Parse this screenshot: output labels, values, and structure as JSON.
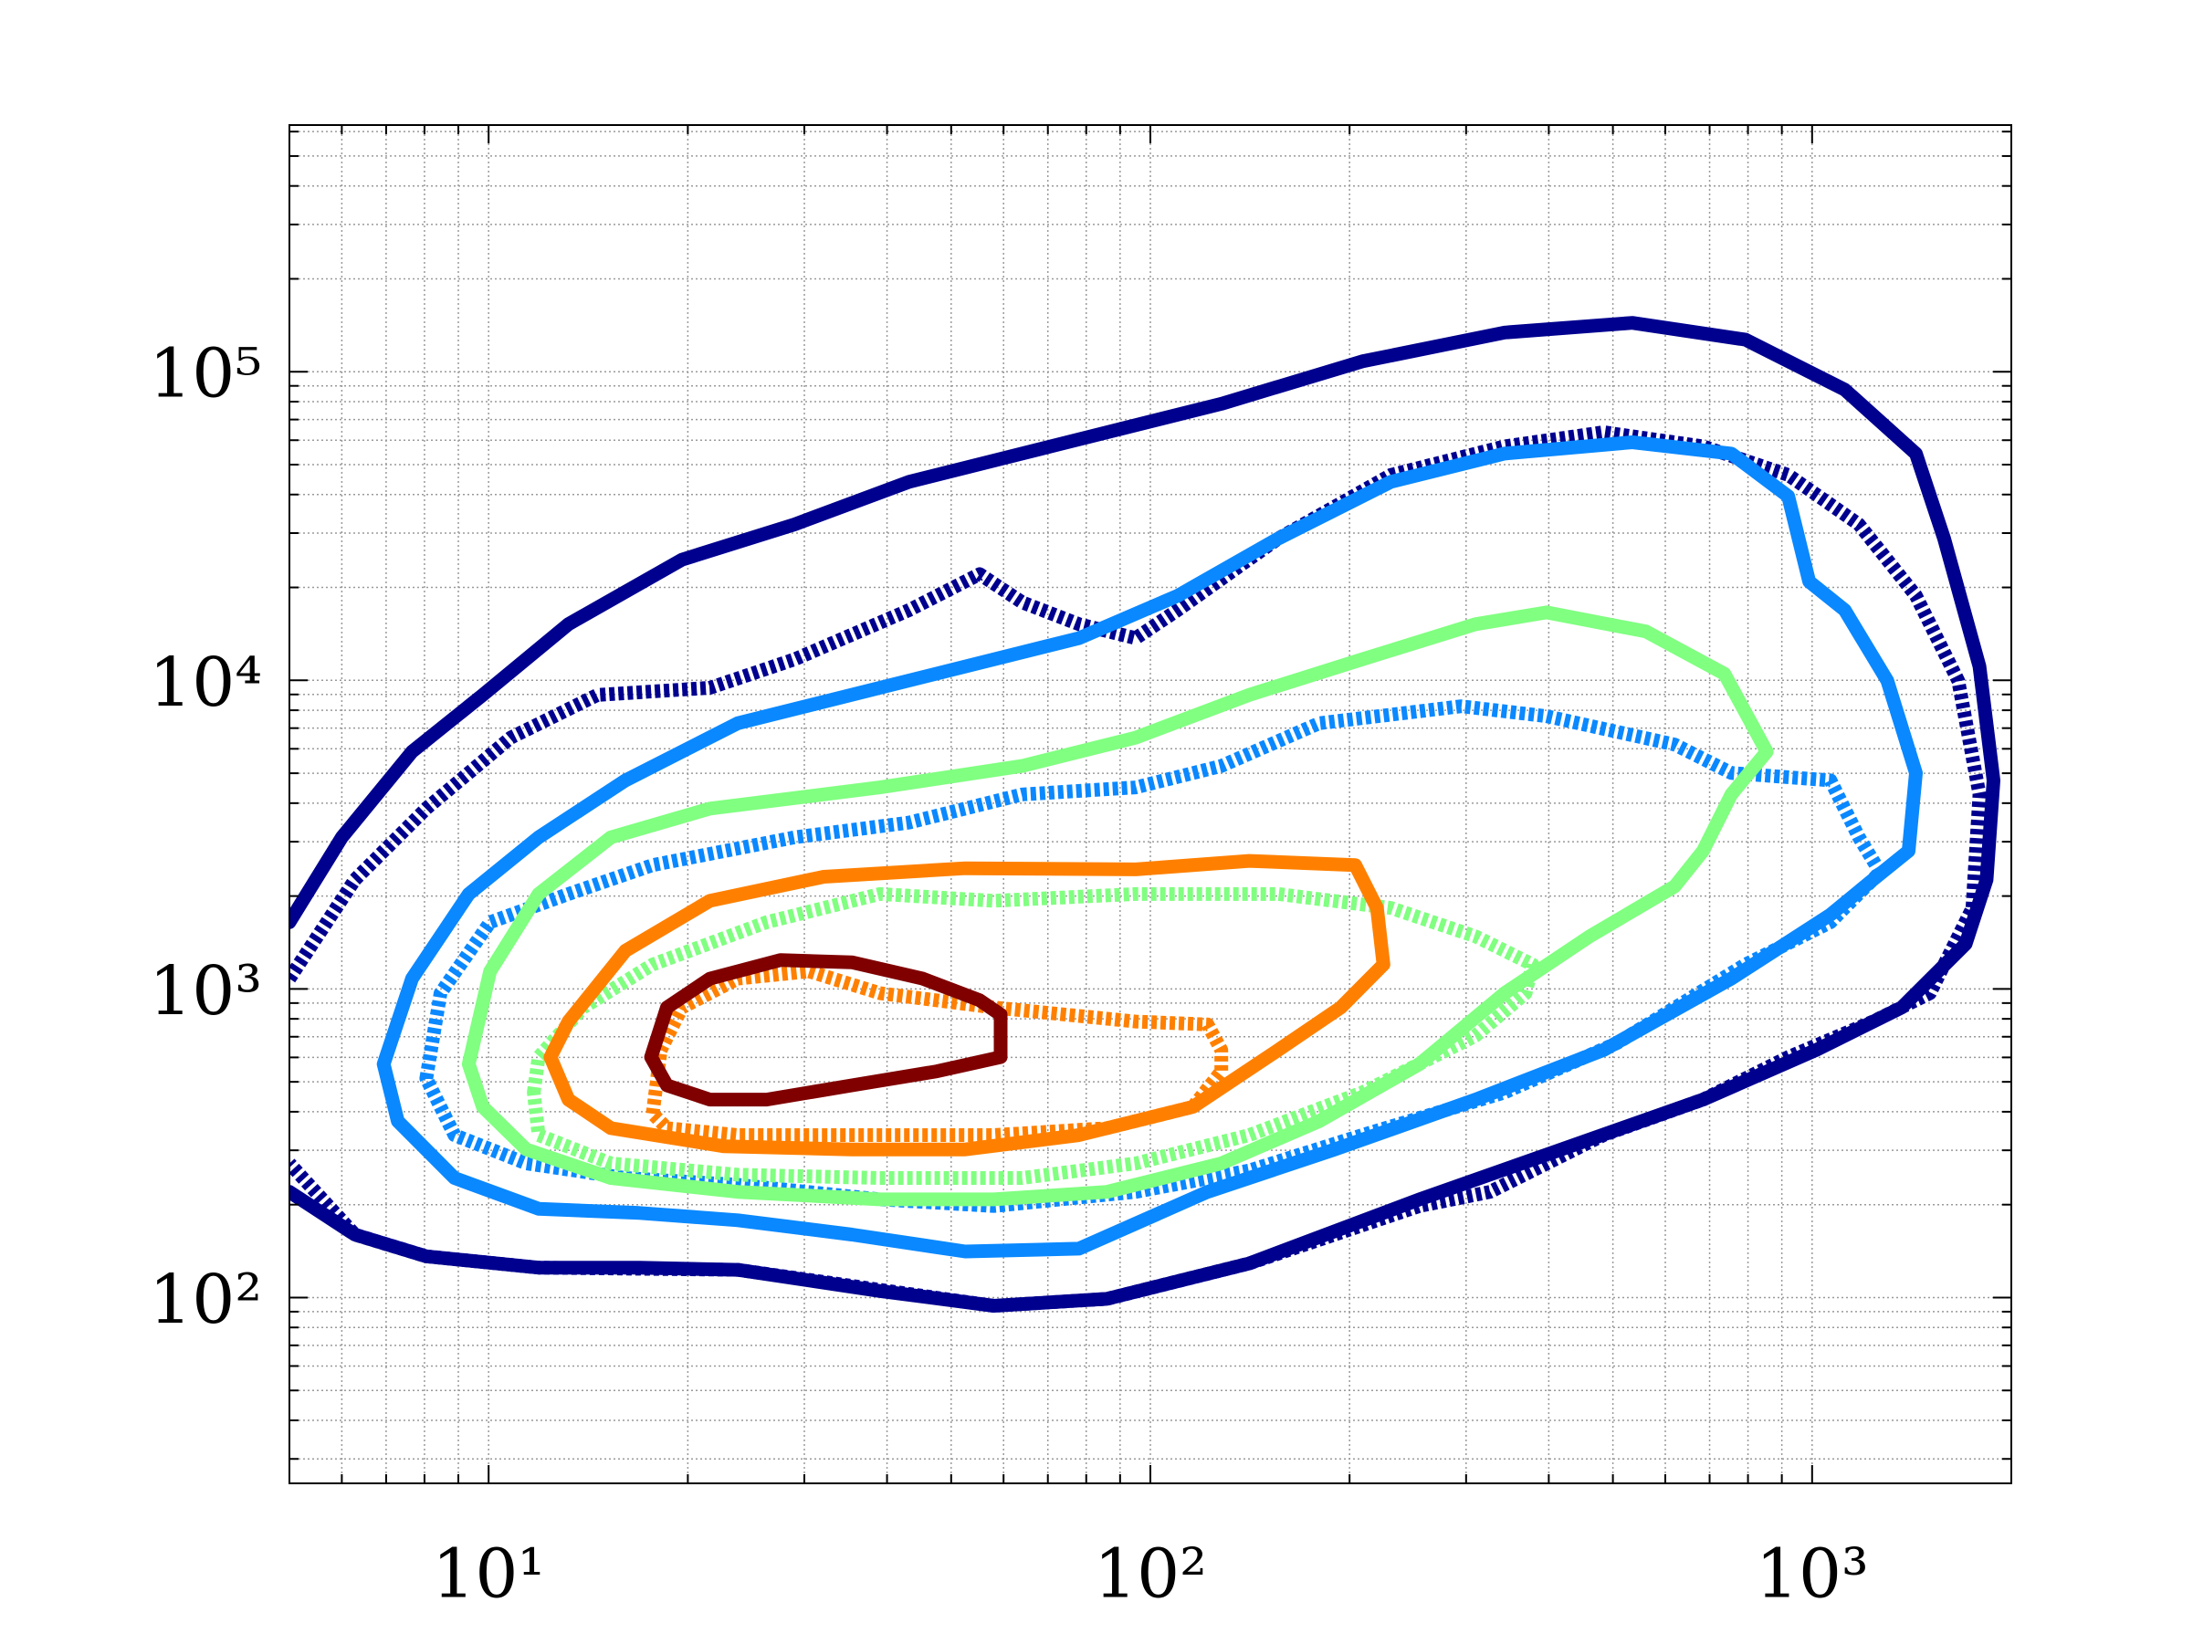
{
  "chart_data": {
    "type": "contour",
    "xscale": "log",
    "yscale": "log",
    "grid": true,
    "xlim": [
      5,
      2000
    ],
    "ylim": [
      25,
      630000
    ],
    "xticks": [
      {
        "value": 10,
        "label": "10¹"
      },
      {
        "value": 100,
        "label": "10²"
      },
      {
        "value": 1000,
        "label": "10³"
      }
    ],
    "yticks": [
      {
        "value": 100,
        "label": "10²"
      },
      {
        "value": 1000,
        "label": "10³"
      },
      {
        "value": 10000,
        "label": "10⁴"
      },
      {
        "value": 100000,
        "label": "10⁵"
      }
    ],
    "xminorticks": [
      5,
      6,
      7,
      8,
      9,
      20,
      30,
      40,
      50,
      60,
      70,
      80,
      90,
      200,
      300,
      400,
      500,
      600,
      700,
      800,
      900
    ],
    "yminorticks": [
      30,
      40,
      50,
      60,
      70,
      80,
      90,
      200,
      300,
      400,
      500,
      600,
      700,
      800,
      900,
      2000,
      3000,
      4000,
      5000,
      6000,
      7000,
      8000,
      9000,
      20000,
      30000,
      40000,
      50000,
      60000,
      70000,
      80000,
      90000,
      200000,
      300000,
      400000,
      500000,
      600000
    ],
    "series": [
      {
        "color": "#00008f",
        "style": "solid",
        "closed": false,
        "x": [
          5,
          6,
          7.66,
          9.8,
          13.2,
          19.6,
          29,
          43.2,
          70.7,
          128,
          209,
          343,
          535,
          793,
          1120,
          1435,
          1583,
          1790,
          1880,
          1835,
          1706,
          1366,
          1014,
          684,
          418,
          255,
          141,
          86,
          58,
          39,
          23.8,
          16.9,
          11.9,
          8.05,
          6.28,
          5
        ],
        "values": [
          1645,
          3100,
          5870,
          8970,
          15200,
          24600,
          32000,
          44000,
          57300,
          78700,
          108000,
          134000,
          144000,
          127000,
          87500,
          54300,
          28800,
          11100,
          4740,
          2260,
          1400,
          871,
          634,
          438,
          302,
          208,
          129,
          99,
          94,
          105,
          123,
          125,
          125,
          136,
          160,
          220
        ]
      },
      {
        "color": "#00008f",
        "style": "dashed",
        "closed": false,
        "x": [
          5,
          6.28,
          8.05,
          10.8,
          14.6,
          21.6,
          29,
          43.2,
          55.2,
          64,
          78,
          95,
          110,
          156,
          231,
          343,
          484,
          684,
          920,
          1177,
          1435,
          1663,
          1790,
          1747,
          1507,
          1236,
          920,
          684,
          484,
          326,
          255,
          141,
          86,
          58,
          23.8,
          11.9,
          8.05,
          6.28,
          5
        ],
        "values": [
          1080,
          2260,
          3840,
          6520,
          8970,
          9460,
          11700,
          16900,
          22100,
          17900,
          15200,
          13700,
          16900,
          28800,
          46300,
          57300,
          63700,
          57300,
          46300,
          32000,
          18800,
          9970,
          4270,
          1830,
          969,
          784,
          601,
          438,
          336,
          220,
          198,
          129,
          99,
          94,
          123,
          125,
          136,
          160,
          272
        ]
      },
      {
        "color": "#0a88ff",
        "style": "solid",
        "closed": true,
        "x": [
          6.94,
          7.66,
          9.33,
          11.9,
          16.1,
          23.8,
          39,
          78,
          110,
          156,
          231,
          343,
          535,
          755,
          920,
          990,
          1120,
          1299,
          1435,
          1399,
          1236,
          1066,
          755,
          484,
          310,
          190,
          122,
          78,
          52.5,
          35.4,
          23.8,
          16.9,
          11.9,
          8.88,
          7.29
        ],
        "values": [
          571,
          1080,
          2030,
          3100,
          4740,
          7260,
          9460,
          13700,
          18800,
          28800,
          44000,
          54300,
          59100,
          54300,
          39500,
          20900,
          16900,
          9970,
          5010,
          2800,
          2260,
          1740,
          1080,
          634,
          438,
          302,
          220,
          144,
          141,
          160,
          178,
          188,
          194,
          244,
          373
        ]
      },
      {
        "color": "#0a88ff",
        "style": "dashed",
        "closed": true,
        "x": [
          8.05,
          8.46,
          10.05,
          13.2,
          17.7,
          29,
          43.2,
          64,
          95,
          128,
          180,
          295,
          397,
          620,
          755,
          1066,
          1177,
          1267,
          1066,
          793,
          508,
          343,
          209,
          141,
          95,
          58,
          39,
          23.8,
          16.1,
          11.4,
          8.88
        ],
        "values": [
          513,
          969,
          1645,
          2030,
          2520,
          3100,
          3460,
          4270,
          4500,
          5280,
          7260,
          8240,
          7650,
          6190,
          5010,
          4740,
          3100,
          2390,
          1645,
          1200,
          669,
          462,
          336,
          258,
          220,
          198,
          208,
          232,
          244,
          272,
          336
        ]
      },
      {
        "color": "#80ff80",
        "style": "solid",
        "closed": true,
        "x": [
          9.33,
          10.05,
          11.9,
          15.3,
          21.6,
          39,
          64,
          95,
          141,
          209,
          310,
          397,
          561,
          737,
          854,
          755,
          684,
          620,
          461,
          343,
          255,
          180,
          128,
          86,
          58,
          39,
          23.8,
          15.3,
          11.4,
          9.8
        ],
        "values": [
          571,
          1140,
          2030,
          3100,
          3840,
          4500,
          5280,
          6520,
          8970,
          11700,
          15200,
          16600,
          14400,
          10500,
          5870,
          4270,
          2800,
          2150,
          1480,
          969,
          571,
          373,
          272,
          220,
          208,
          208,
          220,
          244,
          302,
          415
        ]
      },
      {
        "color": "#80ff80",
        "style": "dashed",
        "closed": true,
        "x": [
          11.7,
          11.9,
          13.9,
          17.7,
          26.3,
          39,
          58,
          95,
          156,
          231,
          310,
          378,
          369,
          310,
          209,
          141,
          95,
          64,
          39,
          23.8,
          15.3,
          11.9
        ],
        "values": [
          462,
          601,
          871,
          1200,
          1645,
          2030,
          1930,
          2030,
          2030,
          1830,
          1480,
          1200,
          969,
          705,
          462,
          336,
          272,
          244,
          244,
          250,
          272,
          336
        ]
      },
      {
        "color": "#ff8000",
        "style": "solid",
        "closed": true,
        "x": [
          12.4,
          13.2,
          16.1,
          21.6,
          32.1,
          52.5,
          95,
          141,
          204,
          220,
          225,
          194,
          156,
          116,
          78,
          52.5,
          35.4,
          22.7,
          15.3,
          13.2
        ],
        "values": [
          601,
          784,
          1330,
          1930,
          2310,
          2460,
          2440,
          2600,
          2520,
          1830,
          1200,
          871,
          634,
          415,
          336,
          302,
          302,
          309,
          354,
          438
        ]
      },
      {
        "color": "#ff8000",
        "style": "dashed",
        "closed": true,
        "x": [
          17.7,
          18.2,
          19.6,
          23.8,
          30.5,
          39,
          58,
          95,
          122,
          128,
          128,
          116,
          86,
          58,
          35.4,
          23.8,
          18.6
        ],
        "values": [
          394,
          634,
          871,
          1080,
          1140,
          969,
          871,
          784,
          767,
          634,
          541,
          415,
          354,
          336,
          336,
          336,
          354
        ]
      },
      {
        "color": "#800000",
        "style": "solid",
        "closed": true,
        "x": [
          17.6,
          18.6,
          21.6,
          27.6,
          35.4,
          45.3,
          55.2,
          59.4,
          59.4,
          47.6,
          35.4,
          26.3,
          21.6,
          18.6
        ],
        "values": [
          601,
          871,
          1080,
          1240,
          1220,
          1080,
          919,
          826,
          601,
          541,
          487,
          438,
          438,
          487
        ]
      }
    ]
  }
}
